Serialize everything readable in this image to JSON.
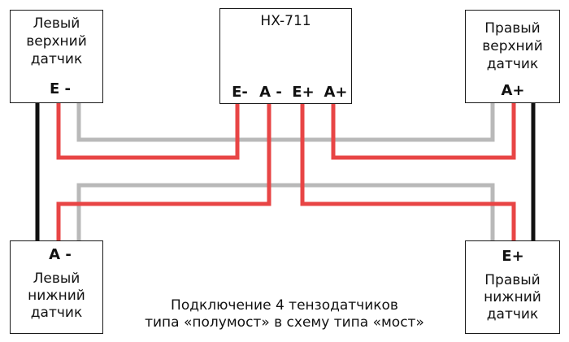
{
  "hx711": {
    "title": "HX-711",
    "pins": [
      "E-",
      "A -",
      "E+",
      "A+"
    ]
  },
  "sensors": {
    "top_left": {
      "name": [
        "Левый",
        "верхний",
        "датчик"
      ],
      "pin": "E -"
    },
    "top_right": {
      "name": [
        "Правый",
        "верхний",
        "датчик"
      ],
      "pin": "A+"
    },
    "bottom_left": {
      "name": [
        "Левый",
        "нижний",
        "датчик"
      ],
      "pin": "A -"
    },
    "bottom_right": {
      "name": [
        "Правый",
        "нижний",
        "датчик"
      ],
      "pin": "E+"
    }
  },
  "caption": [
    "Подключение 4 тензодатчиков",
    "типа «полумост» в схему типа «мост»"
  ],
  "colors": {
    "red_wire": "#e84545",
    "gray_wire": "#b9b9b9",
    "black_wire": "#111111",
    "border": "#1a1a1a"
  }
}
